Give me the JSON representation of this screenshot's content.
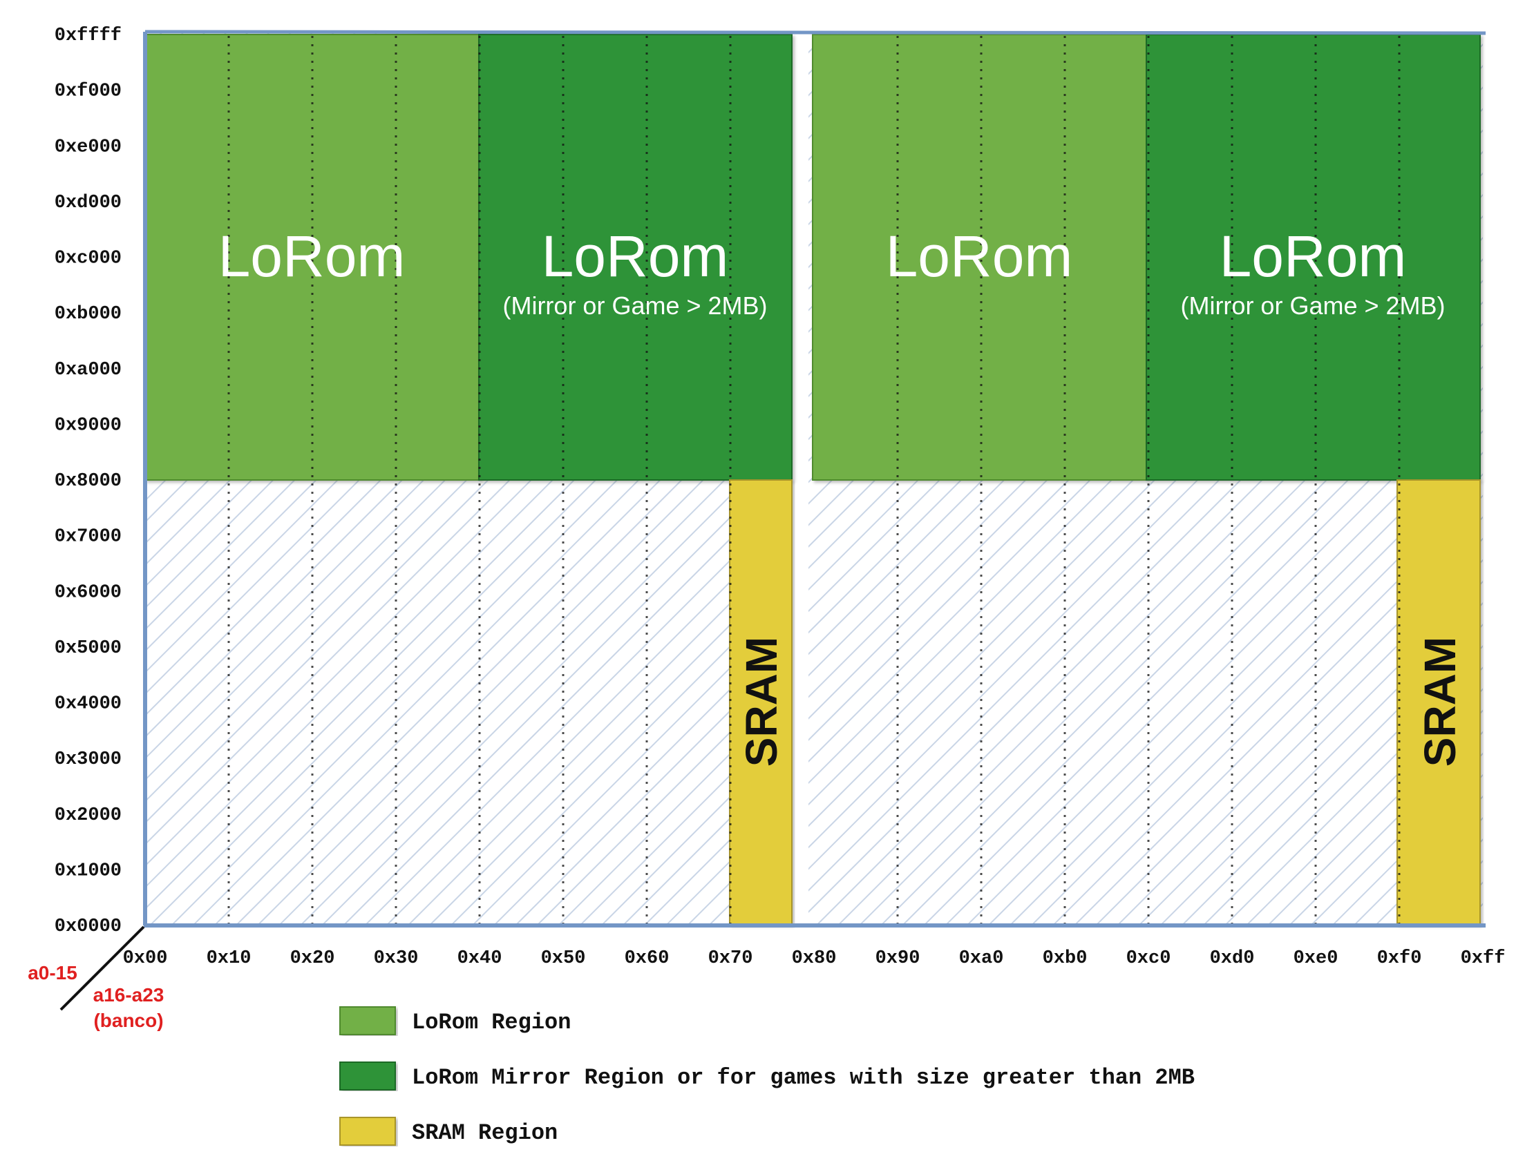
{
  "y_axis": {
    "ticks": [
      "0xffff",
      "0xf000",
      "0xe000",
      "0xd000",
      "0xc000",
      "0xb000",
      "0xa000",
      "0x9000",
      "0x8000",
      "0x7000",
      "0x6000",
      "0x5000",
      "0x4000",
      "0x3000",
      "0x2000",
      "0x1000",
      "0x0000"
    ]
  },
  "x_axis": {
    "ticks": [
      "0x00",
      "0x10",
      "0x20",
      "0x30",
      "0x40",
      "0x50",
      "0x60",
      "0x70",
      "0x80",
      "0x90",
      "0xa0",
      "0xb0",
      "0xc0",
      "0xd0",
      "0xe0",
      "0xf0",
      "0xff"
    ]
  },
  "axis_labels": {
    "vertical": "a0-15",
    "horizontal_line1": "a16-a23",
    "horizontal_line2": "(banco)"
  },
  "regions": {
    "lorom_1": {
      "title": "LoRom"
    },
    "mirror_1": {
      "title": "LoRom",
      "subtitle": "(Mirror or Game > 2MB)"
    },
    "lorom_2": {
      "title": "LoRom"
    },
    "mirror_2": {
      "title": "LoRom",
      "subtitle": "(Mirror or Game > 2MB)"
    },
    "sram_1": {
      "title": "SRAM"
    },
    "sram_2": {
      "title": "SRAM"
    }
  },
  "legend": [
    {
      "label": "LoRom Region",
      "color": "#72b047"
    },
    {
      "label": "LoRom Mirror Region or for games with size greater than 2MB",
      "color": "#2e9338"
    },
    {
      "label": "SRAM Region",
      "color": "#e3cd3a"
    }
  ],
  "colors": {
    "lorom": "#72b047",
    "mirror": "#2e9338",
    "sram": "#e3cd3a",
    "axis": "#7396c6",
    "hatch": "#c9d5e6",
    "axis_label": "#e02020"
  }
}
